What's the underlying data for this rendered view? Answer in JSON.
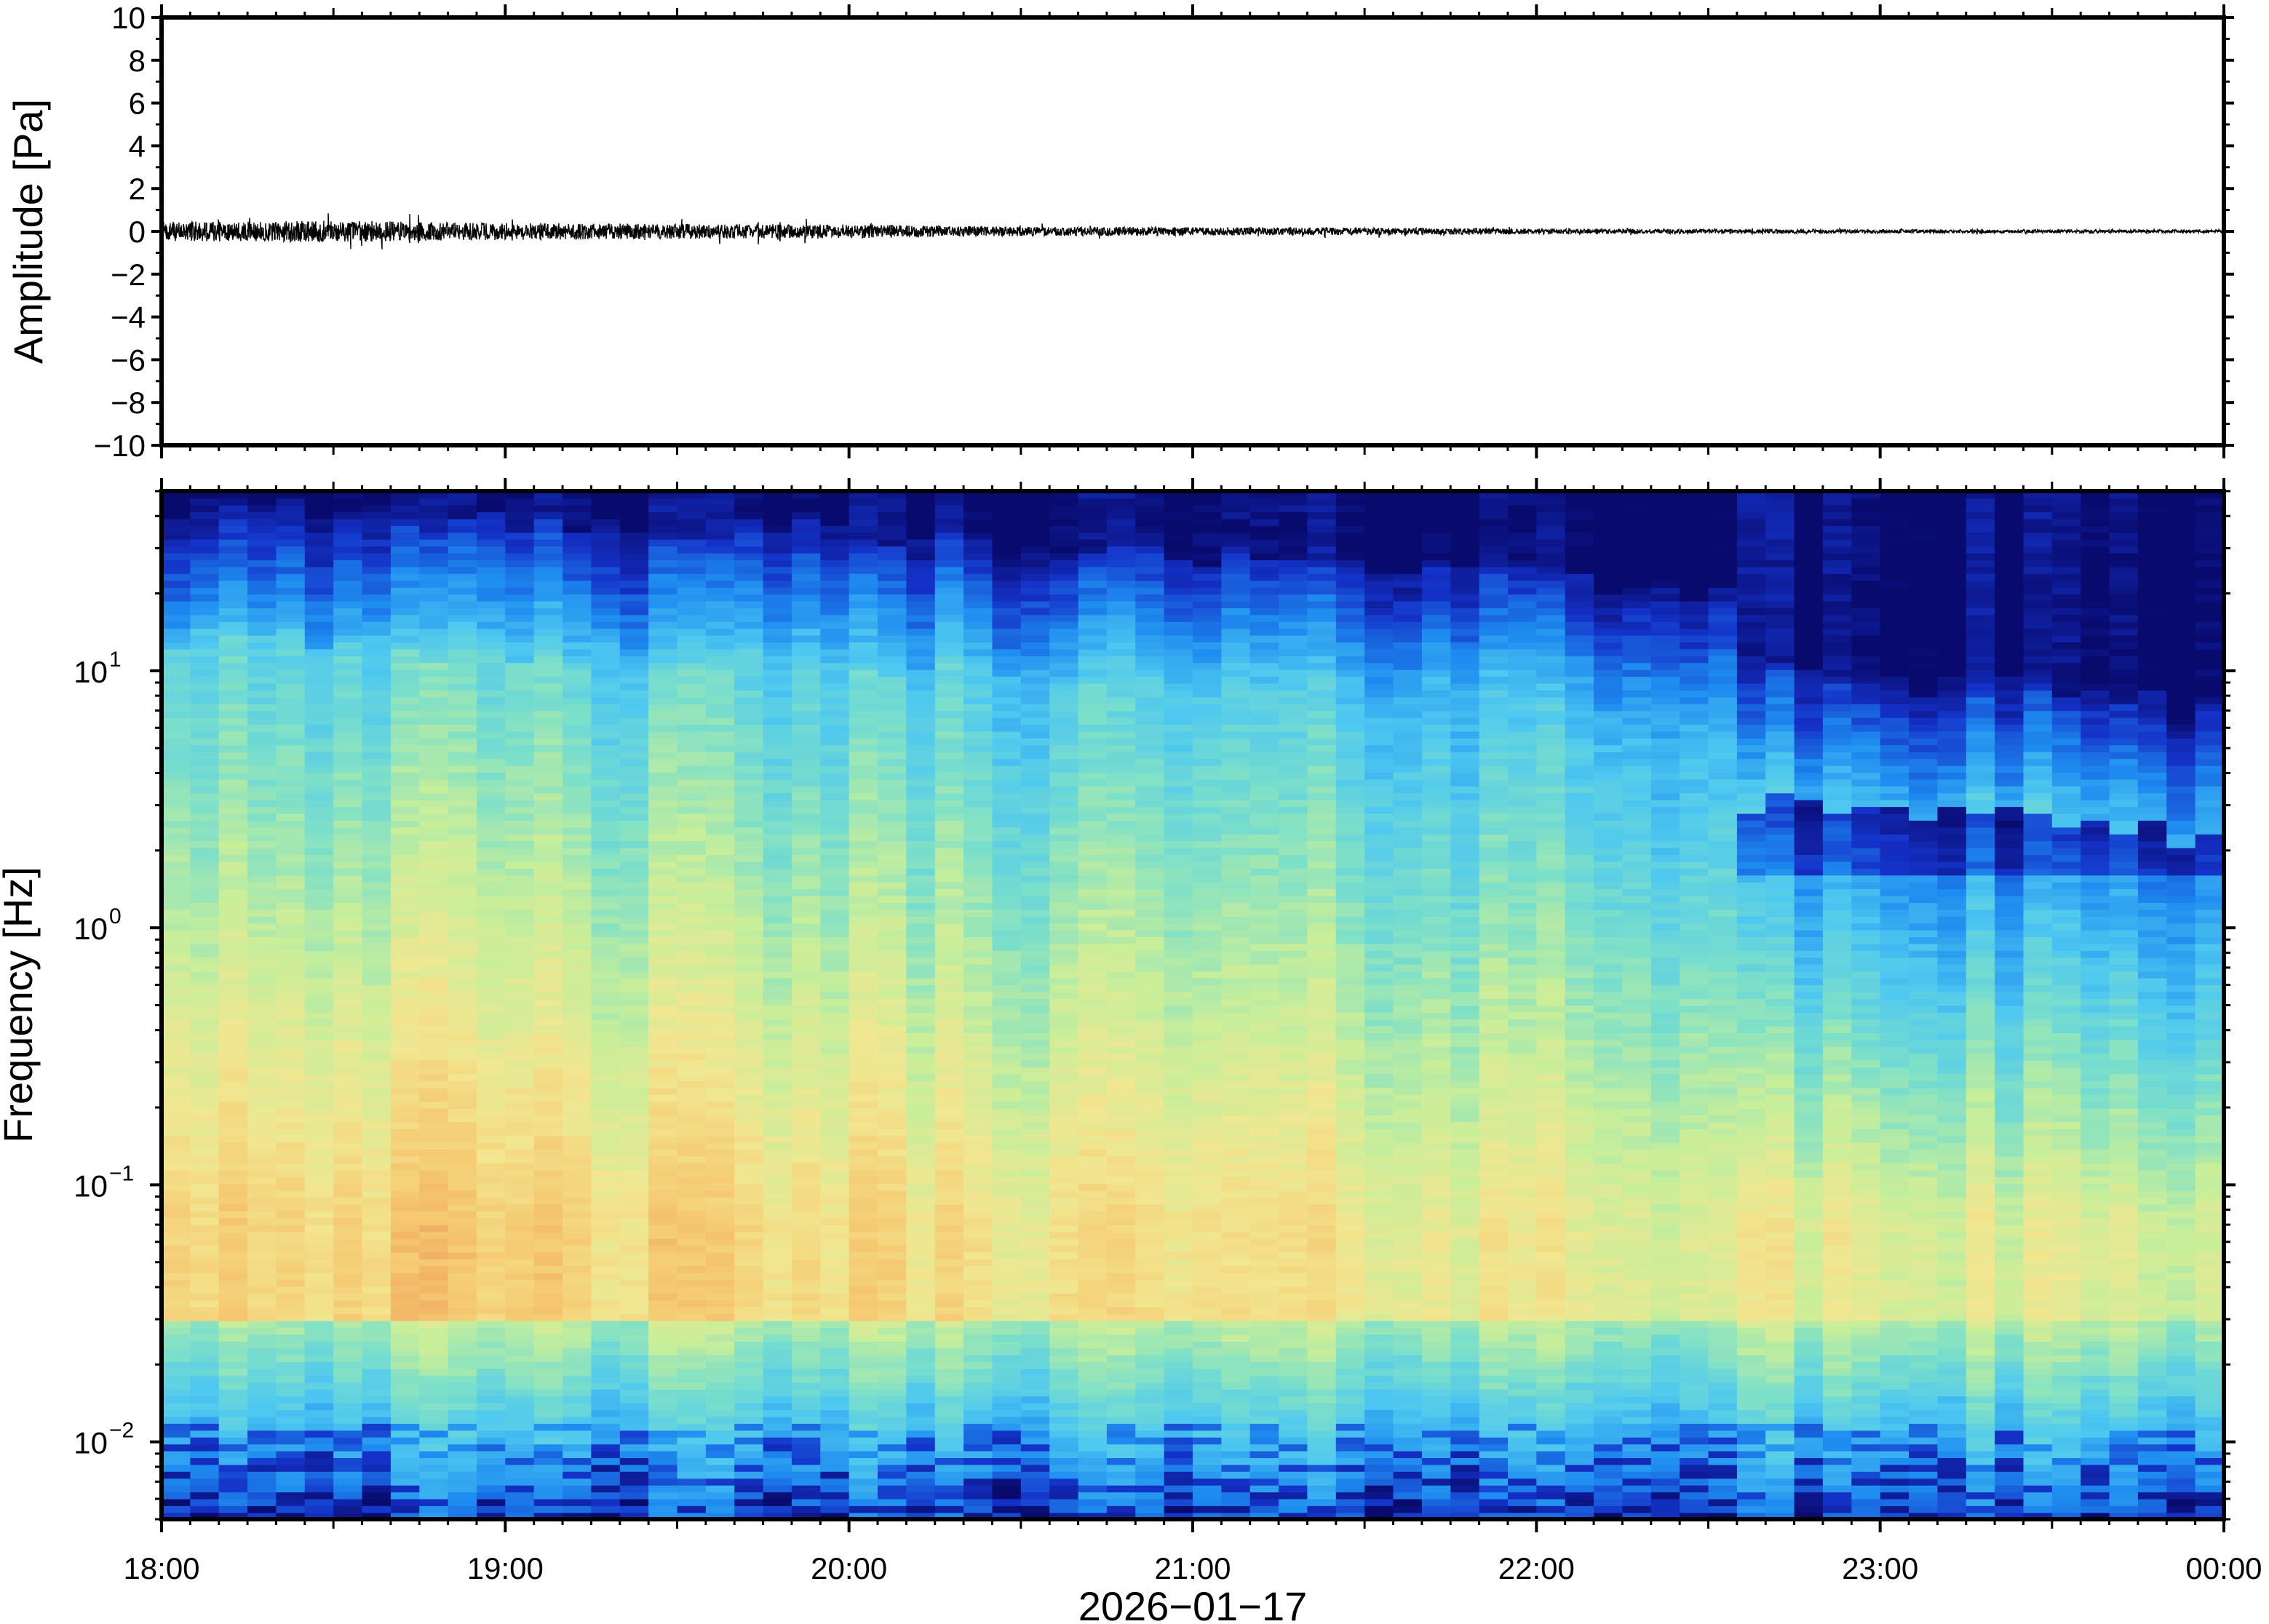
{
  "chart_data": [
    {
      "type": "line",
      "panel": "waveform",
      "ylabel": "Amplitude [Pa]",
      "ylim": [
        -10,
        10
      ],
      "yticks": [
        10,
        8,
        6,
        4,
        2,
        0,
        -2,
        -4,
        -6,
        -8,
        -10
      ],
      "ytick_labels": [
        "10",
        "8",
        "6",
        "4",
        "2",
        "0",
        "−2",
        "−4",
        "−6",
        "−8",
        "−10"
      ],
      "xlim_hours": [
        18,
        24
      ],
      "series": [
        {
          "x_hours": [
            18.0,
            18.5,
            19.0,
            19.5,
            20.0,
            20.5,
            21.0,
            21.5,
            22.0,
            22.5,
            23.0,
            23.5,
            24.0
          ],
          "envelope_pa": [
            0.45,
            0.5,
            0.4,
            0.35,
            0.32,
            0.22,
            0.2,
            0.17,
            0.13,
            0.1,
            0.09,
            0.08,
            0.07
          ]
        }
      ],
      "color": "#000000"
    },
    {
      "type": "heatmap",
      "panel": "spectrogram",
      "ylabel": "Frequency [Hz]",
      "yscale": "log",
      "ylim_hz": [
        0.005,
        50
      ],
      "yticks": [
        {
          "base": "10",
          "exp": "1"
        },
        {
          "base": "10",
          "exp": "0"
        },
        {
          "base": "10",
          "exp": "−1"
        },
        {
          "base": "10",
          "exp": "−2"
        }
      ],
      "xlim_hours": [
        18,
        24
      ],
      "colormap": [
        "#090a6e",
        "#1432c8",
        "#1e8cf0",
        "#4ec8f0",
        "#7ee0c8",
        "#c8ee9a",
        "#f2e690",
        "#f5c870",
        "#ee9a5a"
      ],
      "noise_upper_edge_hz": {
        "x_hours": [
          18.0,
          19.0,
          20.0,
          20.5,
          21.0,
          22.0,
          22.6,
          22.62,
          23.0,
          23.5,
          24.0
        ],
        "hz": [
          30,
          27,
          24,
          22,
          19,
          17,
          14,
          7,
          6.5,
          6,
          5
        ]
      },
      "peak_band_hz": [
        0.03,
        0.2
      ],
      "low_frequency_band_hz": [
        0.005,
        0.015
      ]
    }
  ],
  "x_axis": {
    "ticks": [
      "18:00",
      "19:00",
      "20:00",
      "21:00",
      "22:00",
      "23:00",
      "00:00"
    ],
    "date_label": "2026−01−17"
  }
}
